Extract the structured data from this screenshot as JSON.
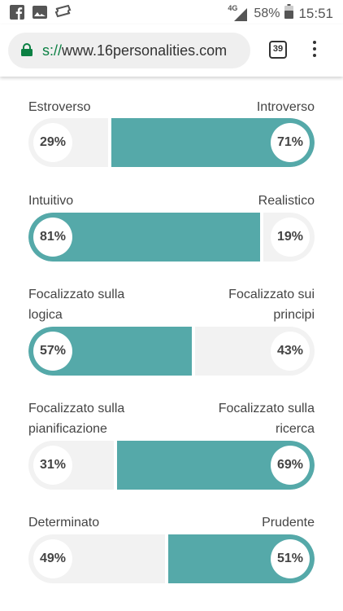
{
  "status_bar": {
    "network": "4G",
    "battery": "58%",
    "time": "15:51"
  },
  "browser": {
    "url_scheme": "s://",
    "url_host": "www.16personalities.com",
    "tab_count": "39"
  },
  "colors": {
    "accent": "#55a9a9",
    "track": "#f2f2f2"
  },
  "traits": [
    {
      "left_label": "Estroverso",
      "right_label": "Introverso",
      "left_pct": "29%",
      "right_pct": "71%",
      "dominant": "right",
      "value": 0.71
    },
    {
      "left_label": "Intuitivo",
      "right_label": "Realistico",
      "left_pct": "81%",
      "right_pct": "19%",
      "dominant": "left",
      "value": 0.81
    },
    {
      "left_label": "Focalizzato sulla logica",
      "right_label": "Focalizzato sui principi",
      "left_pct": "57%",
      "right_pct": "43%",
      "dominant": "left",
      "value": 0.57
    },
    {
      "left_label": "Focalizzato sulla pianificazione",
      "right_label": "Focalizzato sulla ricerca",
      "left_pct": "31%",
      "right_pct": "69%",
      "dominant": "right",
      "value": 0.69
    },
    {
      "left_label": "Determinato",
      "right_label": "Prudente",
      "left_pct": "49%",
      "right_pct": "51%",
      "dominant": "right",
      "value": 0.51
    }
  ]
}
